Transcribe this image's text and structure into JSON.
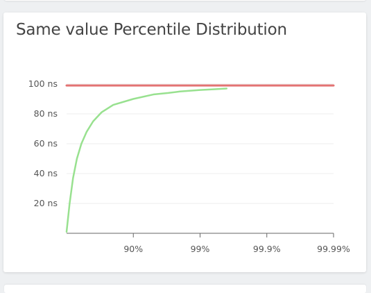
{
  "panel": {
    "title": "Same value Percentile Distribution"
  },
  "chart_data": {
    "type": "line",
    "title": "Same value Percentile Distribution",
    "xlabel": "",
    "ylabel": "",
    "x_scale": "log-percentile",
    "x_tick_labels": [
      "90%",
      "99%",
      "99.9%",
      "99.99%"
    ],
    "x_range_percentile": [
      0,
      99.99
    ],
    "y_tick_values": [
      20,
      40,
      60,
      80,
      100
    ],
    "y_tick_labels": [
      "20 ns",
      "40 ns",
      "60 ns",
      "80 ns",
      "100 ns"
    ],
    "y_range": [
      0,
      100
    ],
    "grid": true,
    "legend": "none",
    "series": [
      {
        "color": "#e37373",
        "points": [
          {
            "percentile": 0,
            "value": 99
          },
          {
            "percentile": 99.99,
            "value": 99
          }
        ]
      },
      {
        "color": "#98e18f",
        "points": [
          {
            "percentile": 0,
            "value": 1
          },
          {
            "percentile": 10,
            "value": 20
          },
          {
            "percentile": 20,
            "value": 37
          },
          {
            "percentile": 30,
            "value": 50
          },
          {
            "percentile": 40,
            "value": 60
          },
          {
            "percentile": 50,
            "value": 68
          },
          {
            "percentile": 60,
            "value": 75
          },
          {
            "percentile": 70,
            "value": 81
          },
          {
            "percentile": 80,
            "value": 86
          },
          {
            "percentile": 90,
            "value": 90
          },
          {
            "percentile": 95,
            "value": 93
          },
          {
            "percentile": 97,
            "value": 94
          },
          {
            "percentile": 98,
            "value": 95
          },
          {
            "percentile": 99,
            "value": 96
          },
          {
            "percentile": 99.4,
            "value": 96.5
          },
          {
            "percentile": 99.6,
            "value": 97
          }
        ]
      }
    ]
  }
}
